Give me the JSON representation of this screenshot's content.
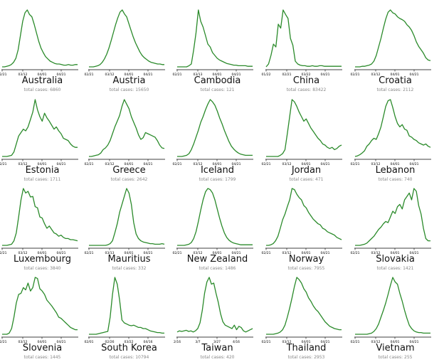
{
  "line_color": "#2a8a2a",
  "axis_color": "#000000",
  "total_prefix": "total cases: ",
  "chart_data": [
    {
      "type": "line",
      "country": "Australia",
      "total_label": "6860",
      "ticks": [
        "02/21",
        "03/12",
        "04/01",
        "04/21"
      ],
      "values": [
        0,
        0,
        1,
        2,
        4,
        8,
        15,
        30,
        55,
        80,
        95,
        100,
        92,
        88,
        75,
        60,
        45,
        33,
        25,
        18,
        14,
        10,
        8,
        6,
        5,
        5,
        4,
        3,
        3,
        4,
        3,
        3,
        4,
        4
      ]
    },
    {
      "type": "line",
      "country": "Austria",
      "total_label": "15650",
      "ticks": [
        "02/21",
        "03/12",
        "04/01",
        "04/21"
      ],
      "values": [
        0,
        0,
        0,
        1,
        2,
        4,
        8,
        14,
        22,
        33,
        46,
        60,
        74,
        86,
        96,
        100,
        93,
        88,
        76,
        64,
        52,
        42,
        34,
        26,
        20,
        16,
        13,
        10,
        8,
        7,
        6,
        5,
        5,
        4,
        4
      ]
    },
    {
      "type": "line",
      "country": "Cambodia",
      "total_label": "121",
      "ticks": [
        "02/21",
        "03/13",
        "04/01",
        "04/21"
      ],
      "values": [
        0,
        0,
        0,
        0,
        0,
        2,
        5,
        30,
        60,
        100,
        80,
        70,
        55,
        40,
        35,
        25,
        20,
        15,
        12,
        10,
        8,
        6,
        5,
        4,
        3,
        3,
        2,
        2,
        2,
        2,
        1,
        1,
        1
      ]
    },
    {
      "type": "line",
      "country": "China",
      "total_label": "83422",
      "ticks": [
        "01/22",
        "02/21",
        "03/22",
        "04/21"
      ],
      "values": [
        0,
        5,
        20,
        40,
        35,
        75,
        68,
        100,
        92,
        85,
        50,
        38,
        10,
        5,
        3,
        2,
        2,
        1,
        1,
        2,
        1,
        1,
        2,
        2,
        1,
        1,
        1,
        1,
        1,
        1,
        1,
        1
      ]
    },
    {
      "type": "line",
      "country": "Croatia",
      "total_label": "2112",
      "ticks": [
        "02/21",
        "03/12",
        "04/01",
        "04/21"
      ],
      "values": [
        0,
        0,
        0,
        1,
        1,
        2,
        3,
        5,
        10,
        20,
        35,
        50,
        68,
        84,
        96,
        100,
        95,
        93,
        88,
        85,
        83,
        80,
        74,
        70,
        64,
        55,
        44,
        36,
        30,
        24,
        16,
        12,
        11
      ]
    },
    {
      "type": "line",
      "country": "Estonia",
      "total_label": "1711",
      "ticks": [
        "02/21",
        "03/12",
        "04/01",
        "04/21"
      ],
      "values": [
        0,
        0,
        0,
        1,
        2,
        8,
        22,
        36,
        42,
        48,
        45,
        52,
        65,
        78,
        100,
        82,
        70,
        62,
        76,
        68,
        62,
        55,
        48,
        52,
        45,
        40,
        32,
        30,
        28,
        22,
        18,
        16,
        16
      ]
    },
    {
      "type": "line",
      "country": "Greece",
      "total_label": "2642",
      "ticks": [
        "02/21",
        "03/12",
        "04/01",
        "04/21"
      ],
      "values": [
        0,
        0,
        1,
        2,
        3,
        6,
        12,
        15,
        20,
        28,
        40,
        52,
        62,
        72,
        88,
        100,
        92,
        84,
        70,
        60,
        50,
        38,
        30,
        33,
        42,
        40,
        38,
        36,
        34,
        28,
        20,
        15,
        14
      ]
    },
    {
      "type": "line",
      "country": "Iceland",
      "total_label": "1799",
      "ticks": [
        "02/21",
        "03/12",
        "04/01",
        "04/21"
      ],
      "values": [
        0,
        0,
        0,
        1,
        2,
        5,
        12,
        22,
        34,
        46,
        60,
        70,
        82,
        92,
        100,
        96,
        90,
        80,
        68,
        58,
        46,
        36,
        26,
        18,
        13,
        9,
        6,
        4,
        3,
        2,
        2,
        2,
        2
      ]
    },
    {
      "type": "line",
      "country": "Jordan",
      "total_label": "471",
      "ticks": [
        "02/21",
        "03/12",
        "04/01",
        "04/21"
      ],
      "values": [
        0,
        0,
        0,
        0,
        0,
        0,
        2,
        5,
        12,
        40,
        70,
        100,
        96,
        88,
        78,
        70,
        62,
        66,
        58,
        50,
        44,
        38,
        32,
        28,
        22,
        20,
        16,
        14,
        16,
        12,
        14,
        18,
        20
      ]
    },
    {
      "type": "line",
      "country": "Lebanon",
      "total_label": "740",
      "ticks": [
        "02/21",
        "03/12",
        "04/01",
        "04/21"
      ],
      "values": [
        0,
        1,
        3,
        6,
        10,
        18,
        22,
        28,
        32,
        30,
        40,
        52,
        70,
        88,
        98,
        100,
        86,
        70,
        58,
        52,
        56,
        48,
        46,
        36,
        34,
        30,
        28,
        24,
        22,
        20,
        22,
        18,
        16
      ]
    },
    {
      "type": "line",
      "country": "Luxembourg",
      "total_label": "3840",
      "ticks": [
        "02/21",
        "03/12",
        "04/01",
        "04/21"
      ],
      "values": [
        0,
        0,
        0,
        1,
        2,
        8,
        22,
        50,
        80,
        100,
        92,
        95,
        85,
        86,
        68,
        66,
        50,
        48,
        38,
        30,
        34,
        28,
        22,
        20,
        16,
        18,
        14,
        12,
        12,
        10,
        10,
        9,
        8
      ]
    },
    {
      "type": "line",
      "country": "Mauritius",
      "total_label": "332",
      "ticks": [
        "02/21",
        "03/13",
        "04/01",
        "04/21"
      ],
      "values": [
        0,
        0,
        0,
        0,
        0,
        0,
        0,
        0,
        1,
        3,
        8,
        22,
        38,
        58,
        72,
        86,
        100,
        92,
        72,
        40,
        20,
        12,
        8,
        6,
        5,
        4,
        3,
        3,
        2,
        2,
        2,
        3,
        2
      ]
    },
    {
      "type": "line",
      "country": "New Zealand",
      "total_label": "1486",
      "ticks": [
        "02/21",
        "03/12",
        "04/01",
        "04/21"
      ],
      "values": [
        0,
        0,
        0,
        0,
        1,
        2,
        5,
        12,
        24,
        42,
        62,
        80,
        94,
        100,
        98,
        92,
        80,
        64,
        48,
        34,
        22,
        14,
        9,
        6,
        4,
        3,
        2,
        1,
        1,
        1,
        1,
        1,
        1
      ]
    },
    {
      "type": "line",
      "country": "Norway",
      "total_label": "7955",
      "ticks": [
        "02/21",
        "03/12",
        "04/01",
        "04/21"
      ],
      "values": [
        0,
        0,
        1,
        3,
        8,
        16,
        30,
        45,
        55,
        68,
        80,
        100,
        98,
        90,
        84,
        80,
        70,
        66,
        58,
        52,
        46,
        42,
        38,
        36,
        30,
        28,
        24,
        22,
        20,
        18,
        14,
        12,
        10
      ]
    },
    {
      "type": "line",
      "country": "Slovakia",
      "total_label": "1421",
      "ticks": [
        "02/21",
        "03/12",
        "04/01",
        "04/21"
      ],
      "values": [
        0,
        0,
        0,
        1,
        2,
        4,
        8,
        12,
        16,
        22,
        28,
        32,
        38,
        42,
        40,
        50,
        60,
        56,
        68,
        72,
        64,
        80,
        86,
        92,
        80,
        100,
        95,
        70,
        55,
        30,
        12,
        8,
        8
      ]
    },
    {
      "type": "line",
      "country": "Slovenia",
      "total_label": "1445",
      "ticks": [
        "02/21",
        "03/12",
        "04/01",
        "04/21"
      ],
      "values": [
        0,
        0,
        0,
        2,
        10,
        30,
        55,
        70,
        72,
        82,
        78,
        90,
        76,
        82,
        100,
        98,
        80,
        76,
        70,
        60,
        55,
        50,
        44,
        38,
        30,
        28,
        24,
        20,
        16,
        12,
        10,
        8,
        8
      ]
    },
    {
      "type": "line",
      "country": "South Korea",
      "total_label": "10794",
      "ticks": [
        "02/01",
        "02/26",
        "03/22",
        "04/16"
      ],
      "values": [
        0,
        0,
        0,
        0,
        1,
        2,
        3,
        4,
        5,
        30,
        70,
        100,
        88,
        60,
        25,
        20,
        18,
        16,
        15,
        16,
        14,
        12,
        12,
        10,
        10,
        8,
        6,
        5,
        4,
        3,
        3,
        2,
        2
      ]
    },
    {
      "type": "line",
      "country": "Taiwan",
      "total_label": "420",
      "ticks": [
        "2/16",
        "3/7",
        "3/27",
        "4/16"
      ],
      "values": [
        4,
        6,
        5,
        6,
        7,
        5,
        6,
        4,
        6,
        10,
        20,
        42,
        72,
        92,
        100,
        88,
        90,
        72,
        56,
        36,
        22,
        16,
        14,
        12,
        10,
        16,
        8,
        14,
        12,
        6,
        4,
        6,
        8,
        10
      ]
    },
    {
      "type": "line",
      "country": "Thailand",
      "total_label": "2953",
      "ticks": [
        "02/21",
        "03/12",
        "04/01",
        "04/21"
      ],
      "values": [
        0,
        0,
        0,
        0,
        1,
        2,
        4,
        8,
        16,
        30,
        46,
        64,
        84,
        100,
        96,
        90,
        80,
        74,
        64,
        58,
        50,
        44,
        40,
        34,
        28,
        22,
        18,
        14,
        12,
        10,
        9,
        8,
        8
      ]
    },
    {
      "type": "line",
      "country": "Vietnam",
      "total_label": "255",
      "ticks": [
        "02/21",
        "03/12",
        "04/01",
        "04/21"
      ],
      "values": [
        0,
        0,
        0,
        0,
        0,
        0,
        1,
        2,
        5,
        10,
        18,
        30,
        42,
        55,
        70,
        86,
        100,
        92,
        88,
        72,
        58,
        42,
        28,
        16,
        10,
        6,
        4,
        3,
        3,
        2,
        2,
        2,
        2
      ]
    }
  ]
}
